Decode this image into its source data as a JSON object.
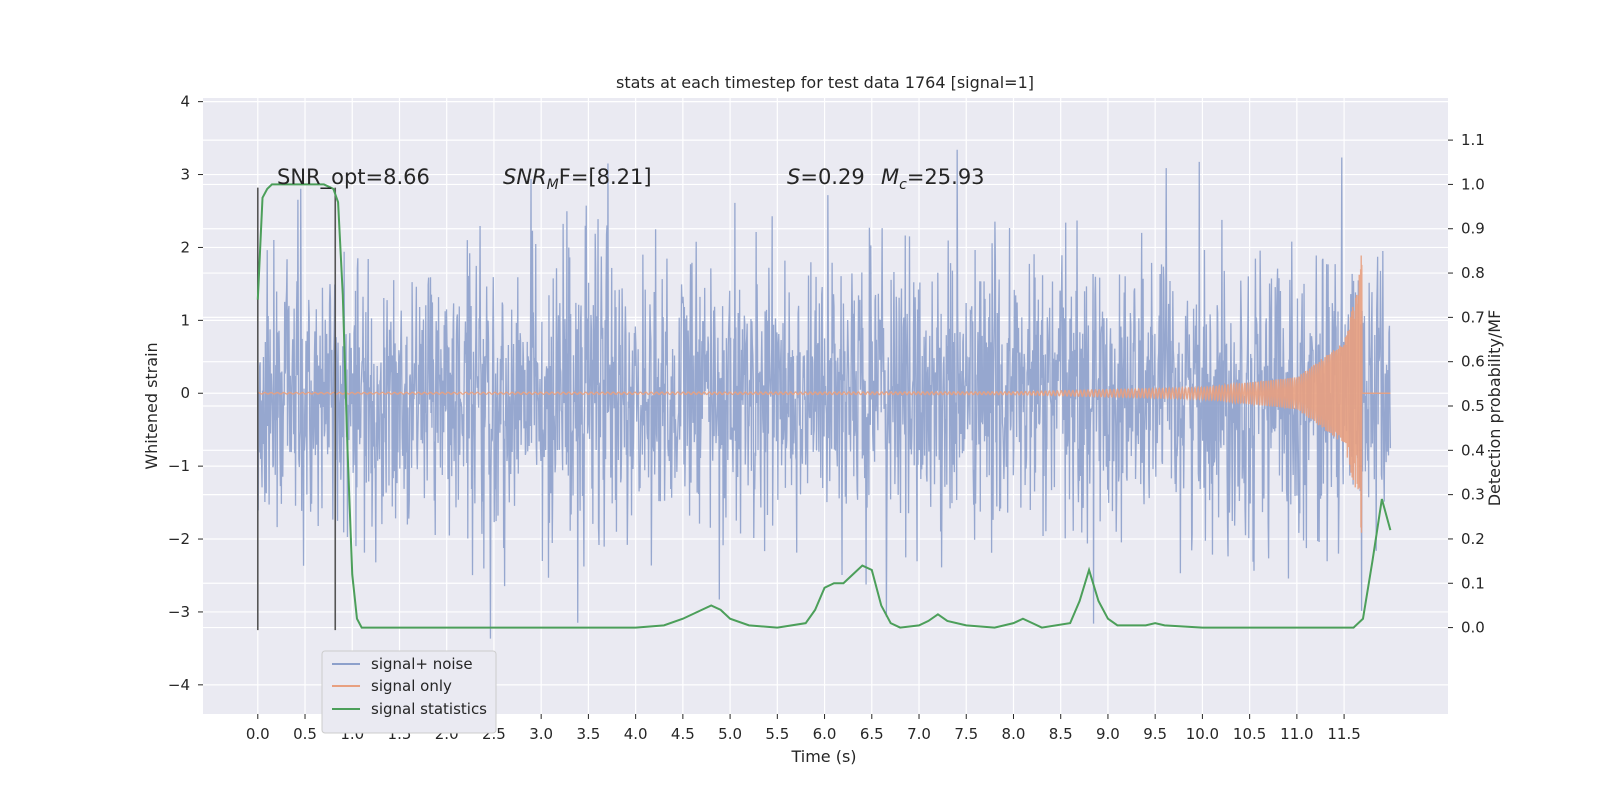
{
  "chart_data": {
    "type": "line",
    "title": "stats at each timestep for test data 1764 [signal=1]",
    "xlabel": "Time (s)",
    "ylabel": "Whitened strain",
    "y2label": "Detection probability/MF",
    "xlim": [
      -0.58,
      12.6
    ],
    "ylim": [
      -4.4,
      4.05
    ],
    "y2lim": [
      -0.195,
      1.195
    ],
    "xticks": [
      "0.0",
      "0.5",
      "1.0",
      "1.5",
      "2.0",
      "2.5",
      "3.0",
      "3.5",
      "4.0",
      "4.5",
      "5.0",
      "5.5",
      "6.0",
      "6.5",
      "7.0",
      "7.5",
      "8.0",
      "8.5",
      "9.0",
      "9.5",
      "10.0",
      "10.5",
      "11.0",
      "11.5"
    ],
    "yticks": [
      "4",
      "3",
      "2",
      "1",
      "0",
      "−1",
      "−2",
      "−3",
      "−4"
    ],
    "y2ticks": [
      "1.1",
      "1.0",
      "0.9",
      "0.8",
      "0.7",
      "0.6",
      "0.5",
      "0.4",
      "0.3",
      "0.2",
      "0.1",
      "0.0"
    ],
    "grid": true,
    "legend_position": "lower-left",
    "annotations": {
      "snr_opt": "SNR_opt=8.66",
      "snr_mf_base": "SNR",
      "snr_mf_sub": "M",
      "snr_mf_tail": "F=[8.21]",
      "s_label": "S",
      "s_value": "=0.29",
      "mc_base": "M",
      "mc_sub": "c",
      "mc_value": "=25.93"
    },
    "vertical_lines": [
      0.0,
      0.82
    ],
    "series": [
      {
        "name": "signal+ noise",
        "color": "#8da0cb",
        "description_of_values": "whitened strain noise, approx ±1.5 typical, extremes near ±3.6",
        "x_range": [
          0.0,
          11.99
        ],
        "sigma": 1.0
      },
      {
        "name": "signal only",
        "color": "#e8a080",
        "x_range": [
          0.0,
          11.99
        ],
        "envelope": {
          "x": [
            0.0,
            8.0,
            10.0,
            11.0,
            11.5,
            11.65,
            11.69
          ],
          "amp": [
            0.01,
            0.02,
            0.08,
            0.22,
            0.7,
            1.5,
            2.0
          ]
        }
      },
      {
        "name": "signal statistics",
        "color": "#4c9f5a",
        "axis": "right",
        "x": [
          0.0,
          0.05,
          0.1,
          0.15,
          0.2,
          0.3,
          0.4,
          0.5,
          0.6,
          0.7,
          0.8,
          0.85,
          0.9,
          0.95,
          1.0,
          1.05,
          1.1,
          1.2,
          1.5,
          2.0,
          2.5,
          3.0,
          3.5,
          4.0,
          4.3,
          4.5,
          4.7,
          4.8,
          4.9,
          5.0,
          5.2,
          5.5,
          5.8,
          5.9,
          6.0,
          6.1,
          6.2,
          6.3,
          6.4,
          6.5,
          6.6,
          6.7,
          6.8,
          7.0,
          7.1,
          7.2,
          7.3,
          7.5,
          7.8,
          8.0,
          8.1,
          8.2,
          8.3,
          8.6,
          8.7,
          8.8,
          8.9,
          9.0,
          9.1,
          9.4,
          9.5,
          9.6,
          10.0,
          11.0,
          11.6,
          11.7,
          11.8,
          11.9,
          11.99
        ],
        "values": [
          0.74,
          0.97,
          0.99,
          1.0,
          1.0,
          1.0,
          1.0,
          1.0,
          1.0,
          1.0,
          0.99,
          0.96,
          0.75,
          0.4,
          0.12,
          0.02,
          0.0,
          0.0,
          0.0,
          0.0,
          0.0,
          0.0,
          0.0,
          0.0,
          0.005,
          0.02,
          0.04,
          0.05,
          0.04,
          0.02,
          0.005,
          0.0,
          0.01,
          0.04,
          0.09,
          0.1,
          0.1,
          0.12,
          0.14,
          0.13,
          0.05,
          0.01,
          0.0,
          0.005,
          0.015,
          0.03,
          0.015,
          0.005,
          0.0,
          0.01,
          0.02,
          0.01,
          0.0,
          0.01,
          0.06,
          0.13,
          0.06,
          0.02,
          0.005,
          0.005,
          0.01,
          0.005,
          0.0,
          0.0,
          0.0,
          0.02,
          0.15,
          0.29,
          0.22
        ]
      }
    ]
  }
}
